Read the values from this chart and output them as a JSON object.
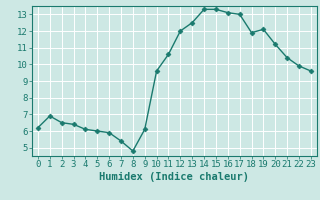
{
  "x": [
    0,
    1,
    2,
    3,
    4,
    5,
    6,
    7,
    8,
    9,
    10,
    11,
    12,
    13,
    14,
    15,
    16,
    17,
    18,
    19,
    20,
    21,
    22,
    23
  ],
  "y": [
    6.2,
    6.9,
    6.5,
    6.4,
    6.1,
    6.0,
    5.9,
    5.4,
    4.8,
    6.1,
    9.6,
    10.6,
    12.0,
    12.5,
    13.3,
    13.3,
    13.1,
    13.0,
    11.9,
    12.1,
    11.2,
    10.4,
    9.9,
    9.6
  ],
  "line_color": "#1a7a6e",
  "marker": "D",
  "marker_size": 2.5,
  "bg_color": "#cde8e4",
  "grid_color": "#ffffff",
  "xlabel": "Humidex (Indice chaleur)",
  "xlim": [
    -0.5,
    23.5
  ],
  "ylim": [
    4.5,
    13.5
  ],
  "yticks": [
    5,
    6,
    7,
    8,
    9,
    10,
    11,
    12,
    13
  ],
  "xticks": [
    0,
    1,
    2,
    3,
    4,
    5,
    6,
    7,
    8,
    9,
    10,
    11,
    12,
    13,
    14,
    15,
    16,
    17,
    18,
    19,
    20,
    21,
    22,
    23
  ],
  "tick_label_size": 6.5,
  "xlabel_size": 7.5
}
